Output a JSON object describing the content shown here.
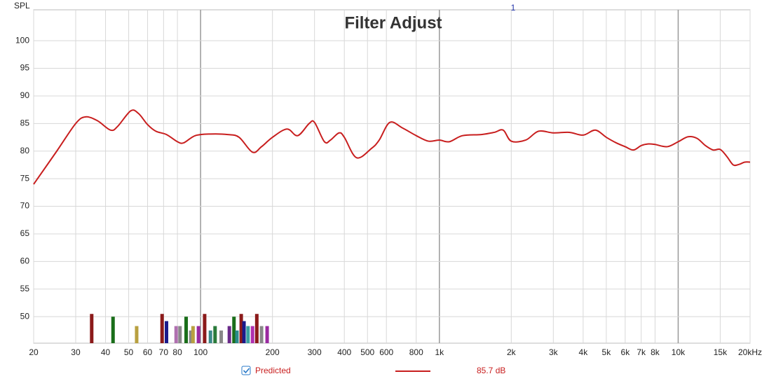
{
  "chart_data": {
    "type": "line",
    "title": "Filter Adjust",
    "y_label": "SPL",
    "marker_label": "1",
    "xscale": "log",
    "grid": true,
    "xlim": [
      20,
      20000
    ],
    "ylim": [
      45.2,
      105.6
    ],
    "yticks": [
      50,
      55,
      60,
      65,
      70,
      75,
      80,
      85,
      90,
      95,
      100
    ],
    "xticks": [
      20,
      30,
      40,
      50,
      60,
      70,
      80,
      100,
      200,
      300,
      400,
      500,
      600,
      800,
      {
        "value": 1000,
        "label": "1k"
      },
      {
        "value": 2000,
        "label": "2k"
      },
      {
        "value": 3000,
        "label": "3k"
      },
      {
        "value": 4000,
        "label": "4k"
      },
      {
        "value": 5000,
        "label": "5k"
      },
      {
        "value": 6000,
        "label": "6k"
      },
      {
        "value": 7000,
        "label": "7k"
      },
      {
        "value": 8000,
        "label": "8k"
      },
      {
        "value": 10000,
        "label": "10k"
      },
      {
        "value": 15000,
        "label": "15k"
      },
      {
        "value": 20000,
        "label": "20kHz"
      }
    ],
    "x": [
      20,
      25,
      30,
      33,
      37,
      42,
      45,
      51,
      55,
      60,
      65,
      72,
      80,
      85,
      95,
      110,
      130,
      145,
      165,
      180,
      200,
      230,
      255,
      285,
      300,
      330,
      350,
      380,
      400,
      450,
      520,
      560,
      620,
      700,
      800,
      900,
      1000,
      1100,
      1250,
      1500,
      1700,
      1850,
      2000,
      2300,
      2600,
      3000,
      3500,
      4000,
      4500,
      5000,
      5500,
      6000,
      6500,
      7000,
      7500,
      8000,
      9000,
      10000,
      11000,
      12000,
      13000,
      14000,
      15000,
      16000,
      17000,
      18000,
      19000,
      20000
    ],
    "series": [
      {
        "name": "Predicted",
        "color": "#c81e1e",
        "values": [
          74,
          80,
          85,
          86.2,
          85.5,
          83.8,
          84.5,
          87.3,
          86.8,
          84.8,
          83.6,
          83,
          81.7,
          81.5,
          82.8,
          83.1,
          83,
          82.5,
          79.8,
          80.8,
          82.5,
          84,
          82.8,
          85,
          85.2,
          81.7,
          82,
          83.3,
          82.5,
          78.8,
          80.5,
          82,
          85.2,
          84.2,
          82.8,
          81.8,
          82,
          81.7,
          82.8,
          83,
          83.4,
          83.8,
          81.8,
          82,
          83.6,
          83.3,
          83.4,
          82.9,
          83.8,
          82.5,
          81.5,
          80.8,
          80.2,
          81,
          81.3,
          81.2,
          80.8,
          81.7,
          82.6,
          82.3,
          81,
          80.2,
          80.3,
          79,
          77.5,
          77.6,
          78,
          78
        ]
      }
    ],
    "legend_value": "85.7 dB",
    "filters": {
      "x": [
        35,
        43,
        54,
        69,
        72,
        79,
        82,
        87,
        91,
        93,
        98,
        104,
        110,
        115,
        122,
        132,
        138,
        142,
        148,
        152,
        158,
        165,
        172,
        180,
        190
      ],
      "values": [
        50.5,
        50,
        48.3,
        50.5,
        49.2,
        48.3,
        48.3,
        50,
        47.5,
        48.3,
        48.3,
        50.5,
        47.5,
        48.3,
        47.5,
        48.3,
        50,
        47.5,
        50.5,
        49.2,
        48.3,
        48.3,
        50.5,
        48.3,
        48.3
      ],
      "colors": [
        "#8b1a1a",
        "#1a6e1a",
        "#b8a040",
        "#8b1a1a",
        "#1a1a8b",
        "#b070b0",
        "#888888",
        "#1a6e1a",
        "#888888",
        "#b8a040",
        "#9a2aa0",
        "#8b1a1a",
        "#3a8a8a",
        "#2a7a3a",
        "#888888",
        "#6a2a8a",
        "#1a6e1a",
        "#2a8a8a",
        "#8b1a1a",
        "#1a1a8b",
        "#3aa0a0",
        "#b030b0",
        "#8b1a1a",
        "#888888",
        "#9a2aa0"
      ]
    }
  }
}
